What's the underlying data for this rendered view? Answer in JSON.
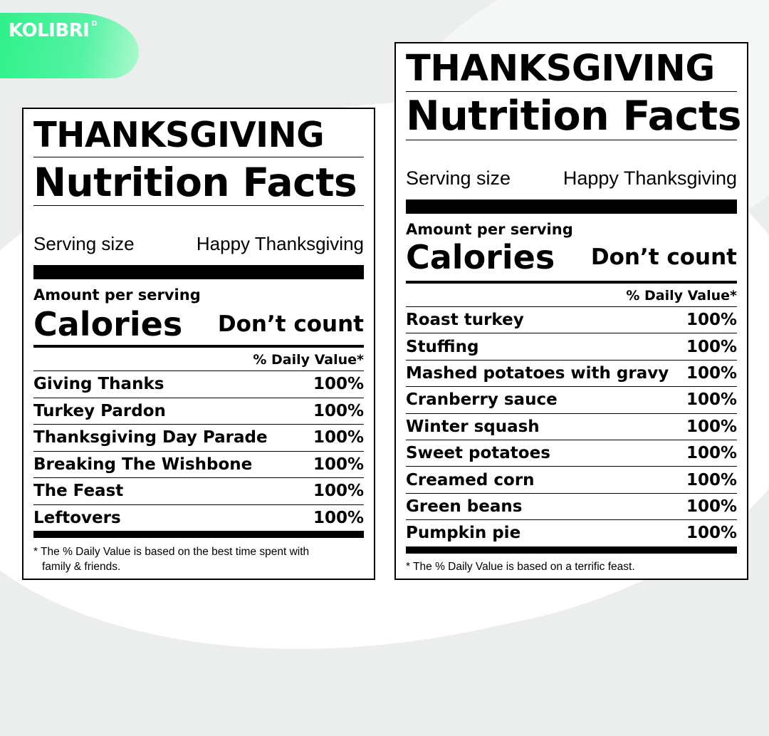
{
  "brand": {
    "logo_text": "KOLIBRI",
    "logo_sup": "D",
    "accent_color": "#2ef18a"
  },
  "labels": [
    {
      "title_line1": "THANKSGIVING",
      "title_line2": "Nutrition Facts",
      "serving_label": "Serving size",
      "serving_value": "Happy Thanksgiving",
      "amount_per_serving": "Amount per serving",
      "calories_label": "Calories",
      "calories_value": "Don’t count",
      "daily_value_header": "% Daily Value*",
      "items": [
        {
          "name": "Giving Thanks",
          "value": "100%"
        },
        {
          "name": "Turkey Pardon",
          "value": "100%"
        },
        {
          "name": "Thanksgiving Day Parade",
          "value": "100%"
        },
        {
          "name": "Breaking The Wishbone",
          "value": "100%"
        },
        {
          "name": "The Feast",
          "value": "100%"
        },
        {
          "name": "Leftovers",
          "value": "100%"
        }
      ],
      "footnote_line1": "* The % Daily Value is based on the best time spent with",
      "footnote_line2": "family & friends."
    },
    {
      "title_line1": "THANKSGIVING",
      "title_line2": "Nutrition Facts",
      "serving_label": "Serving size",
      "serving_value": "Happy Thanksgiving",
      "amount_per_serving": "Amount per serving",
      "calories_label": "Calories",
      "calories_value": "Don’t count",
      "daily_value_header": "% Daily Value*",
      "items": [
        {
          "name": "Roast turkey",
          "value": "100%"
        },
        {
          "name": "Stuffing",
          "value": "100%"
        },
        {
          "name": "Mashed potatoes with gravy",
          "value": "100%"
        },
        {
          "name": "Cranberry sauce",
          "value": "100%"
        },
        {
          "name": "Winter squash",
          "value": "100%"
        },
        {
          "name": "Sweet potatoes",
          "value": "100%"
        },
        {
          "name": "Creamed corn",
          "value": "100%"
        },
        {
          "name": "Green beans",
          "value": "100%"
        },
        {
          "name": "Pumpkin pie",
          "value": "100%"
        }
      ],
      "footnote_line1": "* The % Daily Value is based on a terrific feast."
    }
  ]
}
